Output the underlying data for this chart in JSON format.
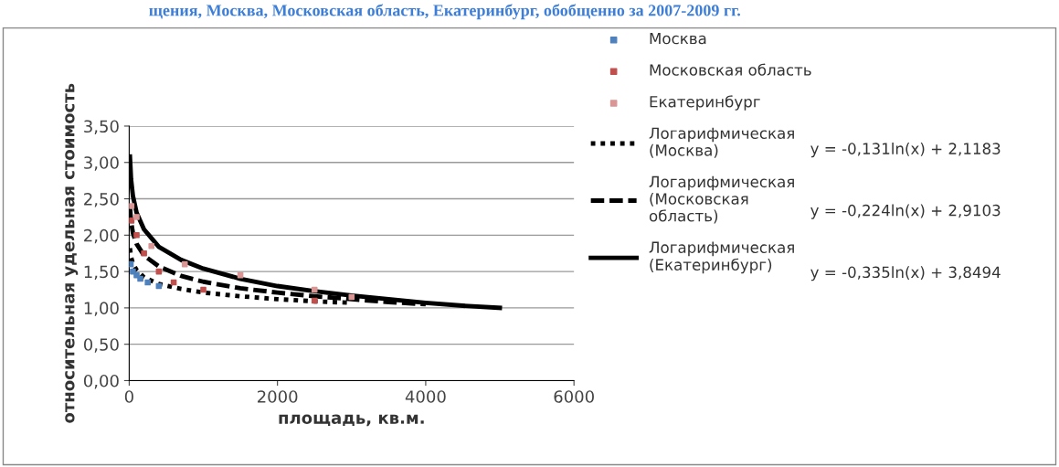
{
  "chart_data": {
    "type": "scatter",
    "title": "щения, Москва, Московская область, Екатеринбург, обобщенно за 2007-2009 гг.",
    "xlabel": "площадь, кв.м.",
    "ylabel": "относительная удельная стоимость",
    "xlim": [
      0,
      6000
    ],
    "xticks": [
      0,
      2000,
      4000,
      6000
    ],
    "ylim": [
      0,
      3.5
    ],
    "yticks": [
      {
        "value": 0,
        "label": "0,00"
      },
      {
        "value": 0.5,
        "label": "0,50"
      },
      {
        "value": 1,
        "label": "1,00"
      },
      {
        "value": 1.5,
        "label": "1,50"
      },
      {
        "value": 2,
        "label": "2,00"
      },
      {
        "value": 2.5,
        "label": "2,50"
      },
      {
        "value": 3,
        "label": "3,00"
      },
      {
        "value": 3.5,
        "label": "3,50"
      }
    ],
    "grid": "y",
    "legend": "right",
    "series": [
      {
        "name": "Москва",
        "marker": "square",
        "color": "#4f81bd",
        "x": [
          20,
          50,
          100,
          150,
          250,
          400
        ],
        "values": [
          1.6,
          1.5,
          1.45,
          1.4,
          1.35,
          1.3
        ]
      },
      {
        "name": "Московская область",
        "marker": "square",
        "color": "#c0504d",
        "x": [
          30,
          100,
          200,
          400,
          600,
          1000,
          2500
        ],
        "values": [
          2.2,
          2.0,
          1.75,
          1.5,
          1.35,
          1.25,
          1.1
        ]
      },
      {
        "name": "Екатеринбург",
        "marker": "square",
        "color": "#d99694",
        "x": [
          30,
          100,
          300,
          750,
          1500,
          2500,
          3000
        ],
        "values": [
          2.4,
          2.25,
          1.85,
          1.6,
          1.45,
          1.25,
          1.15
        ]
      },
      {
        "name": "Логарифмическая (Москва)",
        "type": "line",
        "marker": "none",
        "line_style": "dotted",
        "color": "#000000",
        "x": [
          10,
          25,
          50,
          100,
          200,
          400,
          700,
          1000,
          1500,
          2000,
          2500,
          3000
        ],
        "values": [
          1.82,
          1.7,
          1.61,
          1.52,
          1.42,
          1.33,
          1.26,
          1.21,
          1.16,
          1.12,
          1.09,
          1.07
        ]
      },
      {
        "name": "Логарифмическая (Московская область)",
        "type": "line",
        "marker": "none",
        "line_style": "dashed",
        "color": "#000000",
        "x": [
          10,
          25,
          50,
          100,
          200,
          400,
          700,
          1000,
          1500,
          2000,
          2500,
          3000,
          3500,
          4000
        ],
        "values": [
          2.39,
          2.19,
          2.03,
          1.88,
          1.72,
          1.57,
          1.44,
          1.36,
          1.27,
          1.21,
          1.16,
          1.12,
          1.08,
          1.05
        ]
      },
      {
        "name": "Логарифмическая (Екатеринбург)",
        "type": "line",
        "marker": "none",
        "line_style": "solid",
        "color": "#000000",
        "x": [
          10,
          25,
          50,
          100,
          200,
          400,
          700,
          1000,
          1500,
          2000,
          2500,
          3000,
          3500,
          4000,
          4500,
          5000
        ],
        "values": [
          3.08,
          2.77,
          2.54,
          2.31,
          2.08,
          1.84,
          1.66,
          1.54,
          1.4,
          1.3,
          1.23,
          1.17,
          1.12,
          1.07,
          1.03,
          1.0
        ]
      }
    ],
    "annotations": [
      "y = -0,131ln(x) + 2,1183",
      "y = -0,224ln(x) + 2,9103",
      "y = -0,335ln(x) + 3,8494"
    ]
  }
}
